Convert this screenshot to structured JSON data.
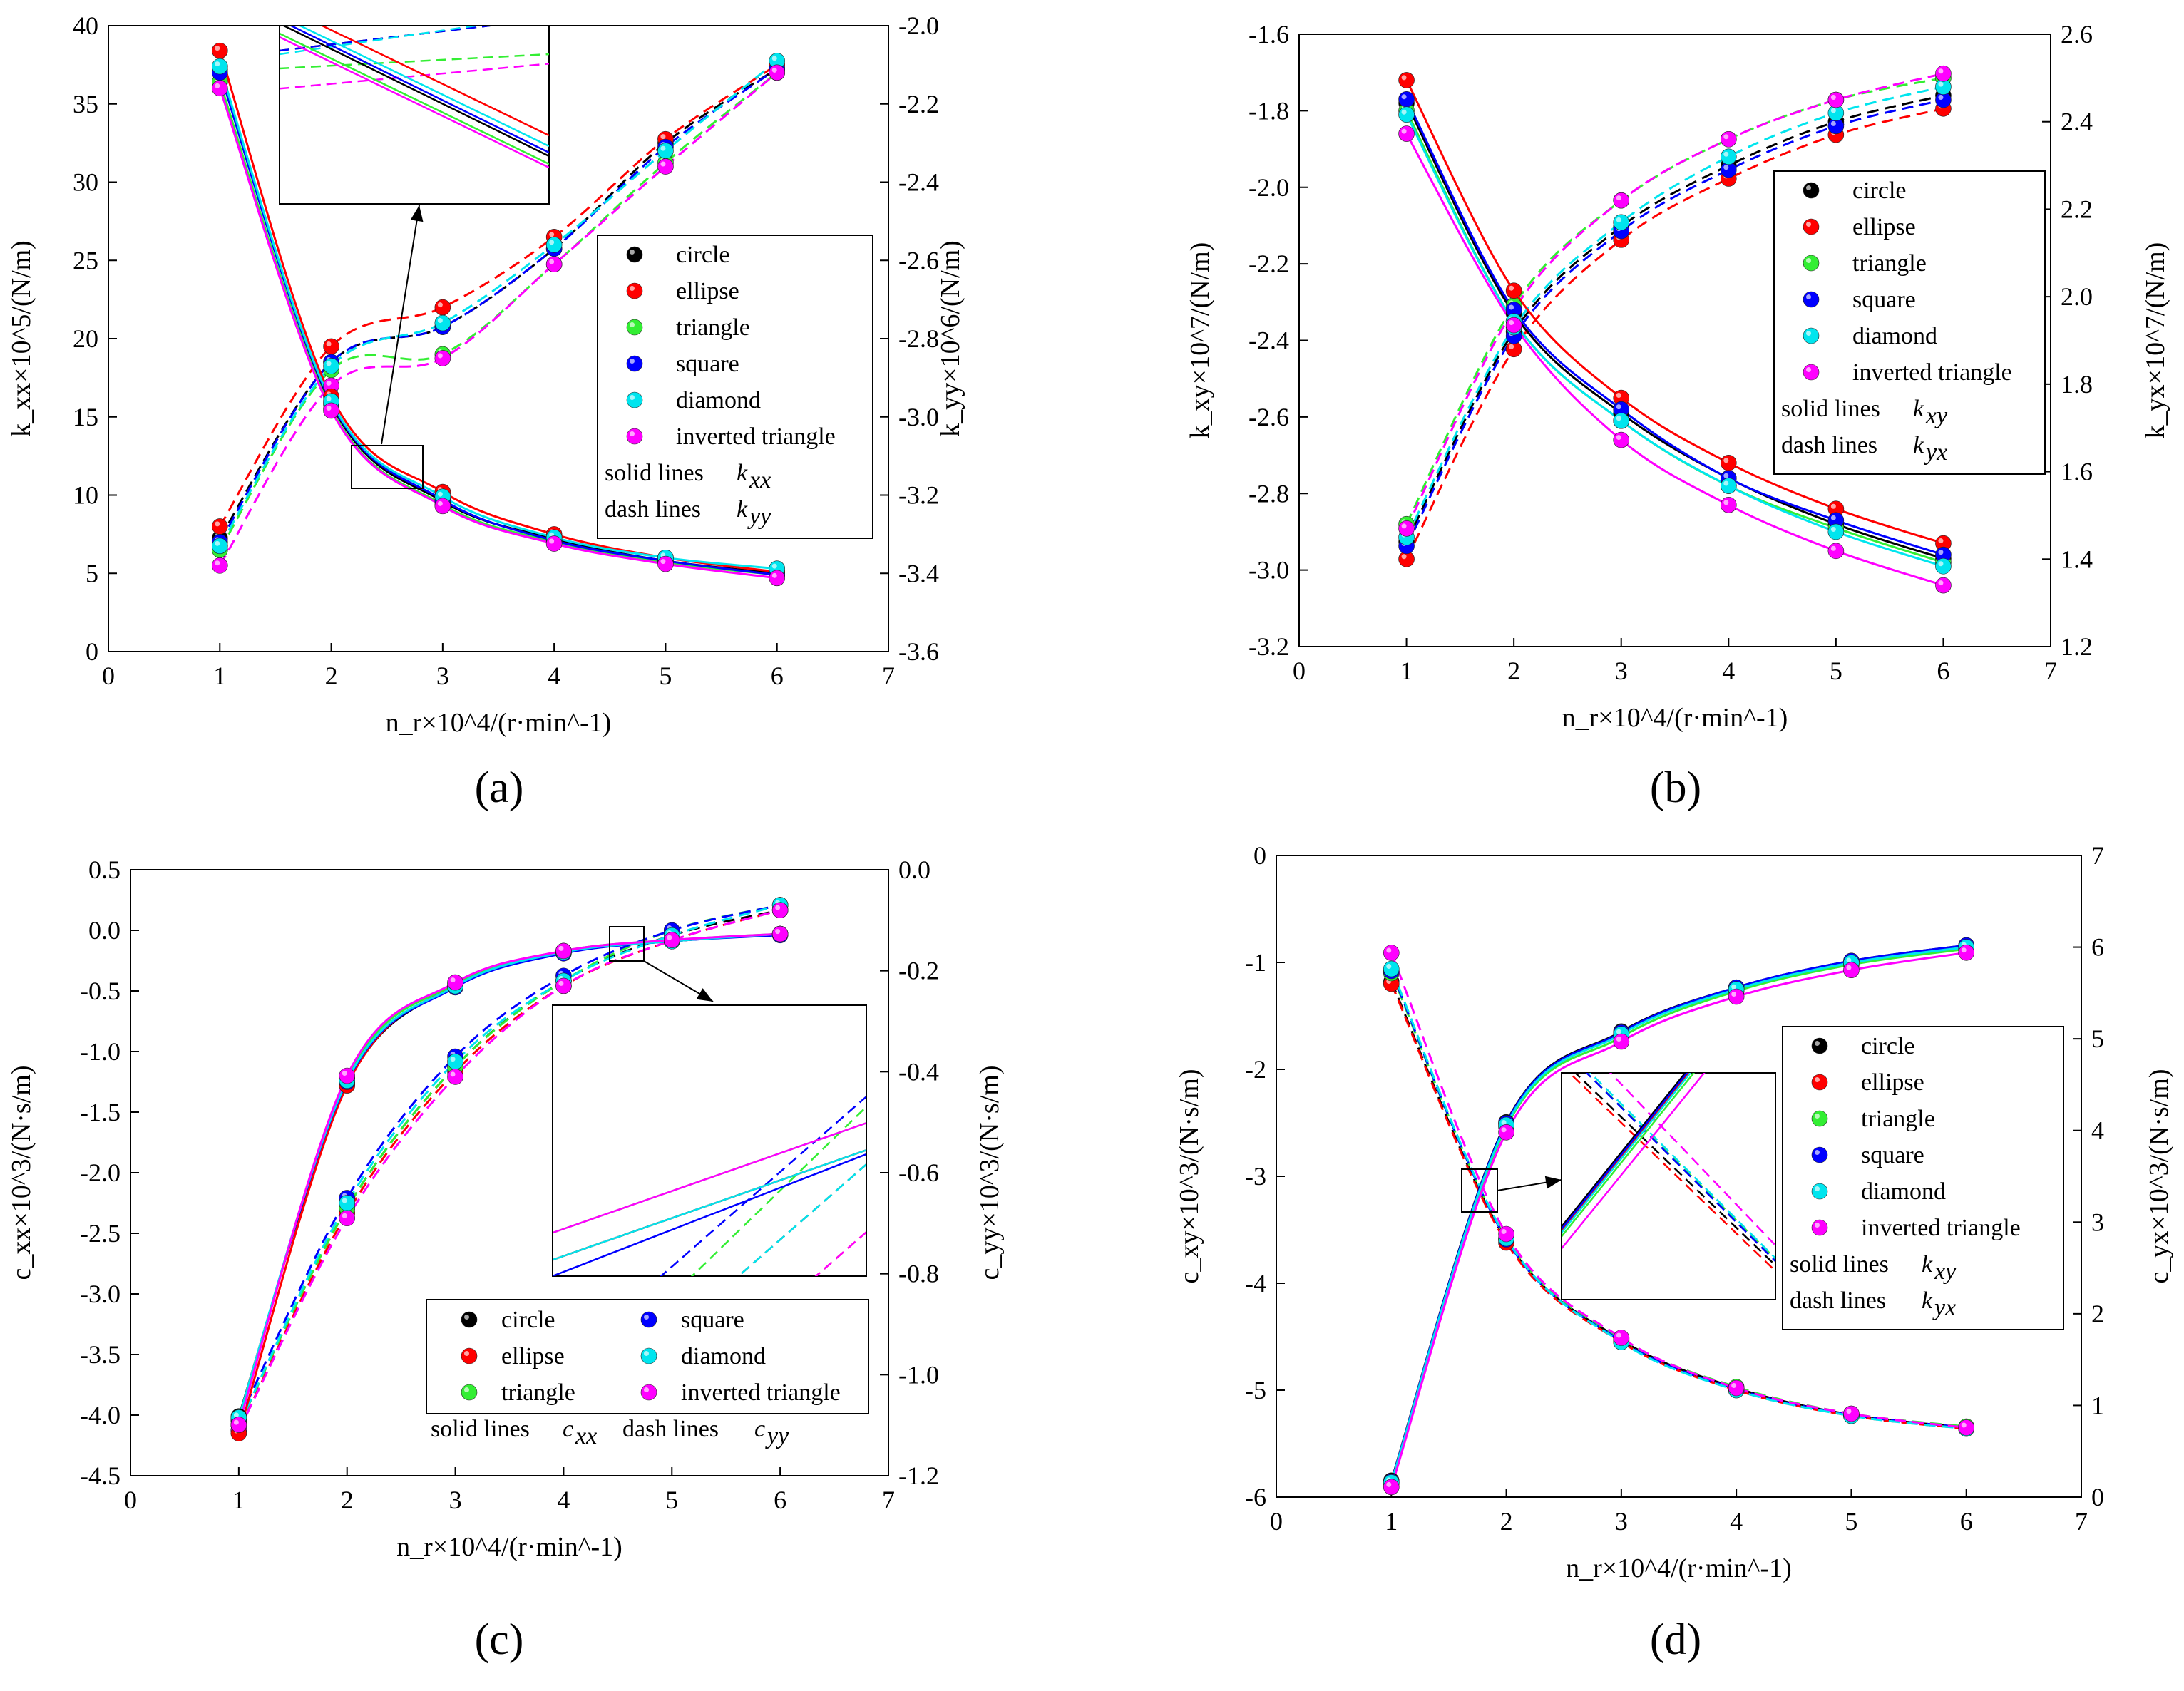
{
  "colors": {
    "circle": "#000000",
    "ellipse": "#ff0000",
    "triangle": "#33ee33",
    "square": "#0000ff",
    "diamond": "#00e5ee",
    "inverted_triangle": "#ff00ff"
  },
  "series_names": [
    "circle",
    "ellipse",
    "triangle",
    "square",
    "diamond",
    "inverted triangle"
  ],
  "chart_data": [
    {
      "id": "a",
      "panel_label": "(a)",
      "type": "line",
      "xlabel": "n_r×10^4/(r·min^-1)",
      "ylabel": "k_xx×10^5/(N/m)",
      "y2label": "k_yy×10^6/(N/m)",
      "xlim": [
        0,
        7
      ],
      "ylim": [
        0,
        40
      ],
      "y2lim": [
        -3.6,
        -2.0
      ],
      "xticks": [
        "0",
        "1",
        "2",
        "3",
        "4",
        "5",
        "6",
        "7"
      ],
      "yticks": [
        "0",
        "5",
        "10",
        "15",
        "20",
        "25",
        "30",
        "35",
        "40"
      ],
      "y2ticks": [
        "-3.6",
        "-3.4",
        "-3.2",
        "-3.0",
        "-2.8",
        "-2.6",
        "-2.4",
        "-2.2",
        "-2.0"
      ],
      "x": [
        1,
        2,
        3,
        4,
        5,
        6
      ],
      "solid_axis": "left",
      "dash_axis": "right",
      "solid_series": [
        {
          "name": "circle",
          "values": [
            37.2,
            15.8,
            9.6,
            7.2,
            5.8,
            5.0
          ]
        },
        {
          "name": "ellipse",
          "values": [
            38.4,
            16.3,
            10.2,
            7.5,
            6.0,
            5.1
          ]
        },
        {
          "name": "triangle",
          "values": [
            36.4,
            15.5,
            9.4,
            7.0,
            5.7,
            4.9
          ]
        },
        {
          "name": "square",
          "values": [
            37.0,
            15.9,
            9.7,
            7.1,
            5.8,
            4.9
          ]
        },
        {
          "name": "diamond",
          "values": [
            37.4,
            16.0,
            9.9,
            7.3,
            6.0,
            5.3
          ]
        },
        {
          "name": "inverted triangle",
          "values": [
            36.0,
            15.4,
            9.3,
            6.9,
            5.6,
            4.7
          ]
        }
      ],
      "dash_series": [
        {
          "name": "circle",
          "values": [
            -3.31,
            -2.86,
            -2.77,
            -2.57,
            -2.3,
            -2.11
          ]
        },
        {
          "name": "ellipse",
          "values": [
            -3.28,
            -2.82,
            -2.72,
            -2.54,
            -2.29,
            -2.1
          ]
        },
        {
          "name": "triangle",
          "values": [
            -3.34,
            -2.88,
            -2.84,
            -2.61,
            -2.35,
            -2.12
          ]
        },
        {
          "name": "square",
          "values": [
            -3.32,
            -2.86,
            -2.77,
            -2.57,
            -2.31,
            -2.11
          ]
        },
        {
          "name": "diamond",
          "values": [
            -3.33,
            -2.87,
            -2.76,
            -2.56,
            -2.32,
            -2.09
          ]
        },
        {
          "name": "inverted triangle",
          "values": [
            -3.38,
            -2.92,
            -2.85,
            -2.61,
            -2.36,
            -2.12
          ]
        }
      ],
      "legend": {
        "entries": [
          "circle",
          "ellipse",
          "triangle",
          "square",
          "diamond",
          "inverted triangle"
        ],
        "solid_label": "solid lines",
        "solid_sym_main": "k",
        "solid_sym_sub": "xx",
        "dash_label": "dash lines",
        "dash_sym_main": "k",
        "dash_sym_sub": "yy"
      }
    },
    {
      "id": "b",
      "panel_label": "(b)",
      "type": "line",
      "xlabel": "n_r×10^4/(r·min^-1)",
      "ylabel": "k_xy×10^7/(N/m)",
      "y2label": "k_yx×10^7/(N/m)",
      "xlim": [
        0,
        7
      ],
      "ylim": [
        -3.2,
        -1.6
      ],
      "y2lim": [
        1.2,
        2.6
      ],
      "xticks": [
        "0",
        "1",
        "2",
        "3",
        "4",
        "5",
        "6",
        "7"
      ],
      "yticks": [
        "-3.2",
        "-3.0",
        "-2.8",
        "-2.6",
        "-2.4",
        "-2.2",
        "-2.0",
        "-1.8",
        "-1.6"
      ],
      "y2ticks": [
        "1.2",
        "1.4",
        "1.6",
        "1.8",
        "2.0",
        "2.2",
        "2.4",
        "2.6"
      ],
      "x": [
        1,
        2,
        3,
        4,
        5,
        6
      ],
      "solid_axis": "left",
      "dash_axis": "right",
      "solid_series": [
        {
          "name": "circle",
          "values": [
            -1.78,
            -2.33,
            -2.59,
            -2.76,
            -2.88,
            -2.97
          ]
        },
        {
          "name": "ellipse",
          "values": [
            -1.72,
            -2.27,
            -2.55,
            -2.72,
            -2.84,
            -2.93
          ]
        },
        {
          "name": "triangle",
          "values": [
            -1.8,
            -2.35,
            -2.61,
            -2.78,
            -2.89,
            -2.98
          ]
        },
        {
          "name": "square",
          "values": [
            -1.77,
            -2.32,
            -2.58,
            -2.76,
            -2.87,
            -2.96
          ]
        },
        {
          "name": "diamond",
          "values": [
            -1.81,
            -2.35,
            -2.61,
            -2.78,
            -2.9,
            -2.99
          ]
        },
        {
          "name": "inverted triangle",
          "values": [
            -1.86,
            -2.36,
            -2.66,
            -2.83,
            -2.95,
            -3.04
          ]
        }
      ],
      "dash_series": [
        {
          "name": "circle",
          "values": [
            1.44,
            1.92,
            2.16,
            2.3,
            2.4,
            2.46
          ]
        },
        {
          "name": "ellipse",
          "values": [
            1.4,
            1.88,
            2.13,
            2.27,
            2.37,
            2.43
          ]
        },
        {
          "name": "triangle",
          "values": [
            1.48,
            1.98,
            2.22,
            2.36,
            2.45,
            2.5
          ]
        },
        {
          "name": "square",
          "values": [
            1.43,
            1.91,
            2.15,
            2.29,
            2.39,
            2.45
          ]
        },
        {
          "name": "diamond",
          "values": [
            1.45,
            1.93,
            2.17,
            2.32,
            2.42,
            2.48
          ]
        },
        {
          "name": "inverted triangle",
          "values": [
            1.47,
            1.97,
            2.22,
            2.36,
            2.45,
            2.51
          ]
        }
      ],
      "legend": {
        "entries": [
          "circle",
          "ellipse",
          "triangle",
          "square",
          "diamond",
          "inverted triangle"
        ],
        "solid_label": "solid lines",
        "solid_sym_main": "k",
        "solid_sym_sub": "xy",
        "dash_label": "dash lines",
        "dash_sym_main": "k",
        "dash_sym_sub": "yx"
      }
    },
    {
      "id": "c",
      "panel_label": "(c)",
      "type": "line",
      "xlabel": "n_r×10^4/(r·min^-1)",
      "ylabel": "c_xx×10^3/(N·s/m)",
      "y2label": "c_yy×10^3/(N·s/m)",
      "xlim": [
        0,
        7
      ],
      "ylim": [
        -4.5,
        0.5
      ],
      "y2lim": [
        -1.2,
        0.0
      ],
      "xticks": [
        "0",
        "1",
        "2",
        "3",
        "4",
        "5",
        "6",
        "7"
      ],
      "yticks": [
        "-4.5",
        "-4.0",
        "-3.5",
        "-3.0",
        "-2.5",
        "-2.0",
        "-1.5",
        "-1.0",
        "-0.5",
        "0.0",
        "0.5"
      ],
      "y2ticks": [
        "-1.2",
        "-1.0",
        "-0.8",
        "-0.6",
        "-0.4",
        "-0.2",
        "0.0"
      ],
      "x": [
        1,
        2,
        3,
        4,
        5,
        6
      ],
      "solid_axis": "left",
      "dash_axis": "right",
      "solid_series": [
        {
          "name": "circle",
          "values": [
            -4.01,
            -1.27,
            -0.46,
            -0.18,
            -0.09,
            -0.03
          ]
        },
        {
          "name": "ellipse",
          "values": [
            -4.15,
            -1.28,
            -0.45,
            -0.18,
            -0.09,
            -0.03
          ]
        },
        {
          "name": "triangle",
          "values": [
            -4.05,
            -1.22,
            -0.44,
            -0.17,
            -0.08,
            -0.03
          ]
        },
        {
          "name": "square",
          "values": [
            -4.03,
            -1.25,
            -0.47,
            -0.19,
            -0.09,
            -0.04
          ]
        },
        {
          "name": "diamond",
          "values": [
            -4.02,
            -1.24,
            -0.46,
            -0.18,
            -0.09,
            -0.03
          ]
        },
        {
          "name": "inverted triangle",
          "values": [
            -4.08,
            -1.2,
            -0.43,
            -0.17,
            -0.08,
            -0.03
          ]
        }
      ],
      "dash_series": [
        {
          "name": "circle",
          "values": [
            -1.1,
            -0.67,
            -0.39,
            -0.22,
            -0.13,
            -0.08
          ]
        },
        {
          "name": "ellipse",
          "values": [
            -1.11,
            -0.68,
            -0.4,
            -0.23,
            -0.14,
            -0.08
          ]
        },
        {
          "name": "triangle",
          "values": [
            -1.1,
            -0.67,
            -0.39,
            -0.22,
            -0.12,
            -0.07
          ]
        },
        {
          "name": "square",
          "values": [
            -1.09,
            -0.65,
            -0.37,
            -0.21,
            -0.12,
            -0.07
          ]
        },
        {
          "name": "diamond",
          "values": [
            -1.1,
            -0.66,
            -0.38,
            -0.22,
            -0.13,
            -0.07
          ]
        },
        {
          "name": "inverted triangle",
          "values": [
            -1.11,
            -0.69,
            -0.41,
            -0.23,
            -0.14,
            -0.08
          ]
        }
      ],
      "legend": {
        "entries": [
          "circle",
          "ellipse",
          "triangle",
          "square",
          "diamond",
          "inverted triangle"
        ],
        "solid_label": "solid lines",
        "solid_sym_main": "c",
        "solid_sym_sub": "xx",
        "dash_label": "dash lines",
        "dash_sym_main": "c",
        "dash_sym_sub": "yy"
      }
    },
    {
      "id": "d",
      "panel_label": "(d)",
      "type": "line",
      "xlabel": "n_r×10^4/(r·min^-1)",
      "ylabel": "c_xy×10^3/(N·s/m)",
      "y2label": "c_yx×10^3/(N·s/m)",
      "xlim": [
        0,
        7
      ],
      "ylim": [
        -6,
        0
      ],
      "y2lim": [
        0,
        7
      ],
      "xticks": [
        "0",
        "1",
        "2",
        "3",
        "4",
        "5",
        "6",
        "7"
      ],
      "yticks": [
        "-6",
        "-5",
        "-4",
        "-3",
        "-2",
        "-1",
        "0"
      ],
      "y2ticks": [
        "0",
        "1",
        "2",
        "3",
        "4",
        "5",
        "6",
        "7"
      ],
      "x": [
        1,
        2,
        3,
        4,
        5,
        6
      ],
      "solid_axis": "right",
      "dash_axis": "left",
      "solid_series": [
        {
          "name": "circle",
          "values": [
            0.18,
            4.09,
            5.08,
            5.56,
            5.85,
            6.02
          ]
        },
        {
          "name": "ellipse",
          "values": [
            0.16,
            4.07,
            5.06,
            5.55,
            5.84,
            6.01
          ]
        },
        {
          "name": "triangle",
          "values": [
            0.15,
            4.04,
            5.02,
            5.52,
            5.81,
            5.98
          ]
        },
        {
          "name": "square",
          "values": [
            0.17,
            4.08,
            5.07,
            5.56,
            5.85,
            6.02
          ]
        },
        {
          "name": "diamond",
          "values": [
            0.16,
            4.06,
            5.05,
            5.54,
            5.83,
            6.0
          ]
        },
        {
          "name": "inverted triangle",
          "values": [
            0.11,
            3.98,
            4.97,
            5.46,
            5.75,
            5.94
          ]
        }
      ],
      "dash_series": [
        {
          "name": "circle",
          "values": [
            -1.18,
            -3.6,
            -4.53,
            -4.98,
            -5.23,
            -5.35
          ]
        },
        {
          "name": "ellipse",
          "values": [
            -1.2,
            -3.62,
            -4.55,
            -5.0,
            -5.24,
            -5.36
          ]
        },
        {
          "name": "triangle",
          "values": [
            -1.1,
            -3.58,
            -4.52,
            -4.97,
            -5.22,
            -5.34
          ]
        },
        {
          "name": "square",
          "values": [
            -1.08,
            -3.59,
            -4.54,
            -4.99,
            -5.23,
            -5.35
          ]
        },
        {
          "name": "diamond",
          "values": [
            -1.06,
            -3.58,
            -4.55,
            -5.0,
            -5.24,
            -5.36
          ]
        },
        {
          "name": "inverted triangle",
          "values": [
            -0.91,
            -3.54,
            -4.51,
            -4.98,
            -5.22,
            -5.35
          ]
        }
      ],
      "legend": {
        "entries": [
          "circle",
          "ellipse",
          "triangle",
          "square",
          "diamond",
          "inverted triangle"
        ],
        "solid_label": "solid lines",
        "solid_sym_main": "k",
        "solid_sym_sub": "xy",
        "dash_label": "dash lines",
        "dash_sym_main": "k",
        "dash_sym_sub": "yx"
      }
    }
  ]
}
